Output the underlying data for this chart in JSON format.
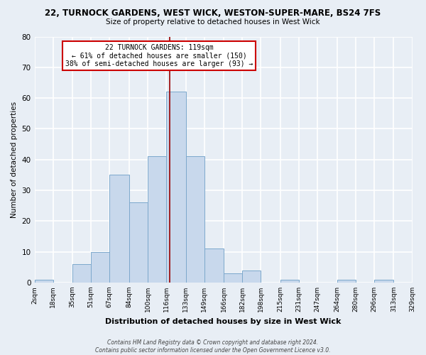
{
  "title": "22, TURNOCK GARDENS, WEST WICK, WESTON-SUPER-MARE, BS24 7FS",
  "subtitle": "Size of property relative to detached houses in West Wick",
  "xlabel": "Distribution of detached houses by size in West Wick",
  "ylabel": "Number of detached properties",
  "bar_color": "#c8d8ec",
  "bar_edge_color": "#7ca8cc",
  "highlight_bar_edge": "#cc0000",
  "highlight_bar_index": 7,
  "bin_edges": [
    2,
    18,
    35,
    51,
    67,
    84,
    100,
    116,
    133,
    149,
    166,
    182,
    198,
    215,
    231,
    247,
    264,
    280,
    296,
    313,
    329
  ],
  "bin_labels": [
    "2sqm",
    "18sqm",
    "35sqm",
    "51sqm",
    "67sqm",
    "84sqm",
    "100sqm",
    "116sqm",
    "133sqm",
    "149sqm",
    "166sqm",
    "182sqm",
    "198sqm",
    "215sqm",
    "231sqm",
    "247sqm",
    "264sqm",
    "280sqm",
    "296sqm",
    "313sqm",
    "329sqm"
  ],
  "counts": [
    1,
    0,
    6,
    10,
    35,
    26,
    41,
    62,
    41,
    11,
    3,
    4,
    0,
    1,
    0,
    0,
    1,
    0,
    1,
    0
  ],
  "ylim": [
    0,
    80
  ],
  "yticks": [
    0,
    10,
    20,
    30,
    40,
    50,
    60,
    70,
    80
  ],
  "annotation_title": "22 TURNOCK GARDENS: 119sqm",
  "annotation_line1": "← 61% of detached houses are smaller (150)",
  "annotation_line2": "38% of semi-detached houses are larger (93) →",
  "vline_x": 119,
  "vline_color": "#990000",
  "annotation_box_color": "#ffffff",
  "annotation_box_edge": "#cc0000",
  "footer_line1": "Contains HM Land Registry data © Crown copyright and database right 2024.",
  "footer_line2": "Contains public sector information licensed under the Open Government Licence v3.0.",
  "background_color": "#e8eef5",
  "grid_color": "#ffffff"
}
